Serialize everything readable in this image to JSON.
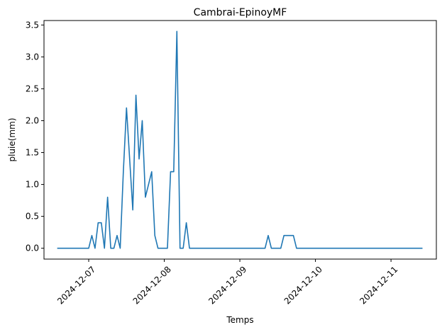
{
  "chart_data": {
    "type": "line",
    "title": "Cambrai-EpinoyMF",
    "xlabel": "Temps",
    "ylabel": "pluie(mm)",
    "x_tick_labels": [
      "2024-12-07",
      "2024-12-08",
      "2024-12-09",
      "2024-12-10",
      "2024-12-11"
    ],
    "y_ticks": [
      0.0,
      0.5,
      1.0,
      1.5,
      2.0,
      2.5,
      3.0,
      3.5
    ],
    "y_tick_labels": [
      "0.0",
      "0.5",
      "1.0",
      "1.5",
      "2.0",
      "2.5",
      "3.0",
      "3.5"
    ],
    "xlim": [
      "2024-12-06 09:48",
      "2024-12-11 14:24"
    ],
    "ylim": [
      -0.17,
      3.57
    ],
    "grid": false,
    "series": [
      {
        "color": "#1f77b4",
        "x": [
          "2024-12-06 14:00",
          "2024-12-06 15:00",
          "2024-12-06 16:00",
          "2024-12-06 17:00",
          "2024-12-06 18:00",
          "2024-12-06 19:00",
          "2024-12-06 20:00",
          "2024-12-06 21:00",
          "2024-12-06 22:00",
          "2024-12-06 23:00",
          "2024-12-07 00:00",
          "2024-12-07 01:00",
          "2024-12-07 02:00",
          "2024-12-07 03:00",
          "2024-12-07 04:00",
          "2024-12-07 05:00",
          "2024-12-07 06:00",
          "2024-12-07 07:00",
          "2024-12-07 08:00",
          "2024-12-07 09:00",
          "2024-12-07 10:00",
          "2024-12-07 11:00",
          "2024-12-07 12:00",
          "2024-12-07 13:00",
          "2024-12-07 14:00",
          "2024-12-07 15:00",
          "2024-12-07 16:00",
          "2024-12-07 17:00",
          "2024-12-07 18:00",
          "2024-12-07 19:00",
          "2024-12-07 20:00",
          "2024-12-07 21:00",
          "2024-12-07 22:00",
          "2024-12-07 23:00",
          "2024-12-08 00:00",
          "2024-12-08 01:00",
          "2024-12-08 02:00",
          "2024-12-08 03:00",
          "2024-12-08 04:00",
          "2024-12-08 05:00",
          "2024-12-08 06:00",
          "2024-12-08 07:00",
          "2024-12-08 08:00",
          "2024-12-09 08:00",
          "2024-12-09 09:00",
          "2024-12-09 10:00",
          "2024-12-09 11:00",
          "2024-12-09 12:00",
          "2024-12-09 13:00",
          "2024-12-09 14:00",
          "2024-12-09 15:00",
          "2024-12-09 16:00",
          "2024-12-09 17:00",
          "2024-12-09 18:00",
          "2024-12-09 19:00",
          "2024-12-09 20:00",
          "2024-12-11 10:00"
        ],
        "values": [
          0,
          0,
          0,
          0,
          0,
          0,
          0,
          0,
          0,
          0,
          0,
          0.2,
          0,
          0.4,
          0.4,
          0,
          0.8,
          0,
          0,
          0.2,
          0,
          1.2,
          2.2,
          1.4,
          0.6,
          2.4,
          1.4,
          2.0,
          0.8,
          1.0,
          1.2,
          0.2,
          0,
          0,
          0,
          0,
          1.2,
          1.2,
          3.4,
          0,
          0,
          0.4,
          0,
          0,
          0.2,
          0,
          0,
          0,
          0,
          0.2,
          0.2,
          0.2,
          0.2,
          0,
          0,
          0,
          0
        ]
      }
    ]
  }
}
